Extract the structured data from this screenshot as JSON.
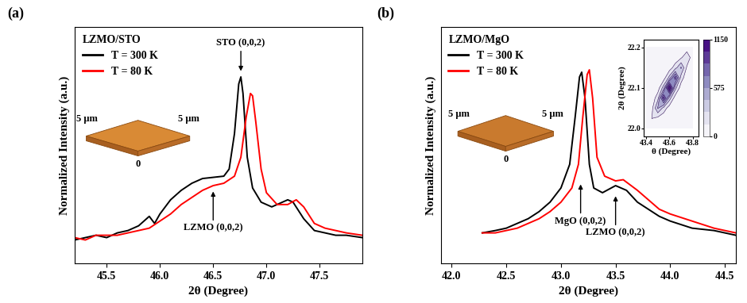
{
  "chart_data": [
    {
      "type": "line",
      "panel_label": "(a)",
      "xlabel": "2θ (Degree)",
      "ylabel": "Normalized Intensity (a.u.)",
      "xlim": [
        45.2,
        47.9
      ],
      "ylim": [
        0,
        1
      ],
      "xticks": [
        45.5,
        46.0,
        46.5,
        47.0,
        47.5
      ],
      "tick_labels": "x",
      "legend": "upper left",
      "legend_title": "LZMO/STO",
      "series": [
        {
          "name": "T = 300 K",
          "color": "#000000",
          "x": [
            45.2,
            45.3,
            45.4,
            45.5,
            45.6,
            45.7,
            45.8,
            45.9,
            45.95,
            46.0,
            46.1,
            46.2,
            46.3,
            46.4,
            46.5,
            46.6,
            46.65,
            46.7,
            46.74,
            46.76,
            46.78,
            46.82,
            46.87,
            46.95,
            47.05,
            47.15,
            47.2,
            47.25,
            47.35,
            47.45,
            47.55,
            47.65,
            47.75,
            47.9
          ],
          "values": [
            0.1,
            0.11,
            0.12,
            0.11,
            0.13,
            0.14,
            0.16,
            0.2,
            0.17,
            0.21,
            0.27,
            0.31,
            0.34,
            0.36,
            0.365,
            0.37,
            0.4,
            0.55,
            0.76,
            0.79,
            0.72,
            0.45,
            0.32,
            0.26,
            0.24,
            0.26,
            0.27,
            0.26,
            0.19,
            0.14,
            0.13,
            0.12,
            0.12,
            0.11
          ]
        },
        {
          "name": "T = 80 K",
          "color": "#ff0000",
          "x": [
            45.2,
            45.3,
            45.4,
            45.5,
            45.6,
            45.7,
            45.8,
            45.9,
            46.0,
            46.1,
            46.2,
            46.3,
            46.4,
            46.5,
            46.6,
            46.7,
            46.76,
            46.81,
            46.85,
            46.87,
            46.9,
            46.95,
            47.0,
            47.1,
            47.2,
            47.28,
            47.35,
            47.45,
            47.55,
            47.65,
            47.75,
            47.9
          ],
          "values": [
            0.11,
            0.1,
            0.12,
            0.12,
            0.12,
            0.13,
            0.14,
            0.15,
            0.18,
            0.21,
            0.25,
            0.28,
            0.31,
            0.33,
            0.34,
            0.37,
            0.45,
            0.62,
            0.72,
            0.71,
            0.6,
            0.4,
            0.3,
            0.25,
            0.25,
            0.27,
            0.24,
            0.17,
            0.15,
            0.14,
            0.13,
            0.12
          ]
        }
      ],
      "annotations": [
        {
          "text": "STO (0,0,2)",
          "x": 46.76,
          "y": 0.81
        },
        {
          "text": "LZMO (0,0,2)",
          "x": 46.5,
          "y": 0.31
        }
      ],
      "inset_image": {
        "type": "image",
        "labels": [
          "5 μm",
          "5 μm",
          "0"
        ],
        "color": "#d98a35"
      }
    },
    {
      "type": "line",
      "panel_label": "(b)",
      "xlabel": "2θ (Degree)",
      "ylabel": "Normalized Intensity (a.u.)",
      "xlim": [
        41.9,
        44.6
      ],
      "ylim": [
        0,
        1
      ],
      "xticks": [
        42.0,
        42.5,
        43.0,
        43.5,
        44.0,
        44.5
      ],
      "tick_labels": "x",
      "legend": "upper left",
      "legend_title": "LZMO/MgO",
      "series": [
        {
          "name": "T = 300 K",
          "color": "#000000",
          "x": [
            42.28,
            42.4,
            42.5,
            42.6,
            42.7,
            42.8,
            42.9,
            43.0,
            43.08,
            43.13,
            43.17,
            43.19,
            43.22,
            43.26,
            43.3,
            43.38,
            43.5,
            43.6,
            43.7,
            43.8,
            43.9,
            44.0,
            44.2,
            44.4,
            44.6
          ],
          "values": [
            0.13,
            0.14,
            0.15,
            0.17,
            0.19,
            0.22,
            0.26,
            0.32,
            0.42,
            0.62,
            0.79,
            0.81,
            0.7,
            0.42,
            0.32,
            0.3,
            0.33,
            0.31,
            0.26,
            0.23,
            0.2,
            0.18,
            0.15,
            0.14,
            0.12
          ]
        },
        {
          "name": "T = 80 K",
          "color": "#ff0000",
          "x": [
            42.28,
            42.4,
            42.5,
            42.6,
            42.7,
            42.8,
            42.9,
            43.0,
            43.1,
            43.16,
            43.2,
            43.24,
            43.26,
            43.29,
            43.33,
            43.4,
            43.5,
            43.57,
            43.7,
            43.8,
            43.9,
            44.0,
            44.2,
            44.4,
            44.6
          ],
          "values": [
            0.13,
            0.13,
            0.14,
            0.15,
            0.17,
            0.19,
            0.22,
            0.26,
            0.32,
            0.42,
            0.62,
            0.8,
            0.82,
            0.7,
            0.45,
            0.37,
            0.35,
            0.355,
            0.31,
            0.27,
            0.23,
            0.21,
            0.18,
            0.15,
            0.13
          ]
        }
      ],
      "annotations": [
        {
          "text": "MgO (0,0,2)",
          "x": 43.18,
          "y": 0.34
        },
        {
          "text": "LZMO (0,0,2)",
          "x": 43.5,
          "y": 0.29
        }
      ],
      "inset_image": {
        "type": "image",
        "labels": [
          "5 μm",
          "5 μm",
          "0"
        ],
        "color": "#c97a2e"
      }
    },
    {
      "type": "contour",
      "color": "Purples",
      "xlabel": "θ (Degree)",
      "ylabel": "2θ (Degree)",
      "xlim": [
        43.38,
        43.85
      ],
      "ylim": [
        21.98,
        22.22
      ],
      "xticks": [
        43.4,
        43.6,
        43.8
      ],
      "yticks": [
        22.0,
        22.1,
        22.2
      ],
      "x": [
        43.4,
        43.45,
        43.5,
        43.55,
        43.6,
        43.65,
        43.7,
        43.75,
        43.8
      ],
      "y": [
        22.0,
        22.025,
        22.05,
        22.075,
        22.1,
        22.125,
        22.15,
        22.175,
        22.2
      ],
      "cells": [
        [
          50,
          35,
          20,
          0,
          0,
          0,
          0,
          0,
          0
        ],
        [
          35,
          150,
          105,
          42,
          0,
          0,
          0,
          0,
          0
        ],
        [
          20,
          105,
          450,
          236,
          64,
          0,
          0,
          0,
          0
        ],
        [
          0,
          42,
          236,
          900,
          359,
          68,
          0,
          0,
          0
        ],
        [
          0,
          0,
          64,
          359,
          1150,
          341,
          64,
          0,
          0
        ],
        [
          0,
          0,
          0,
          68,
          341,
          800,
          219,
          42,
          0
        ],
        [
          0,
          0,
          0,
          0,
          64,
          219,
          450,
          122,
          23
        ],
        [
          0,
          0,
          0,
          0,
          0,
          42,
          122,
          250,
          65
        ],
        [
          0,
          0,
          0,
          0,
          0,
          0,
          23,
          65,
          120
        ]
      ],
      "colorbar_range": [
        0,
        1150
      ],
      "colorbar_ticks": [
        0,
        575,
        1150
      ]
    }
  ]
}
